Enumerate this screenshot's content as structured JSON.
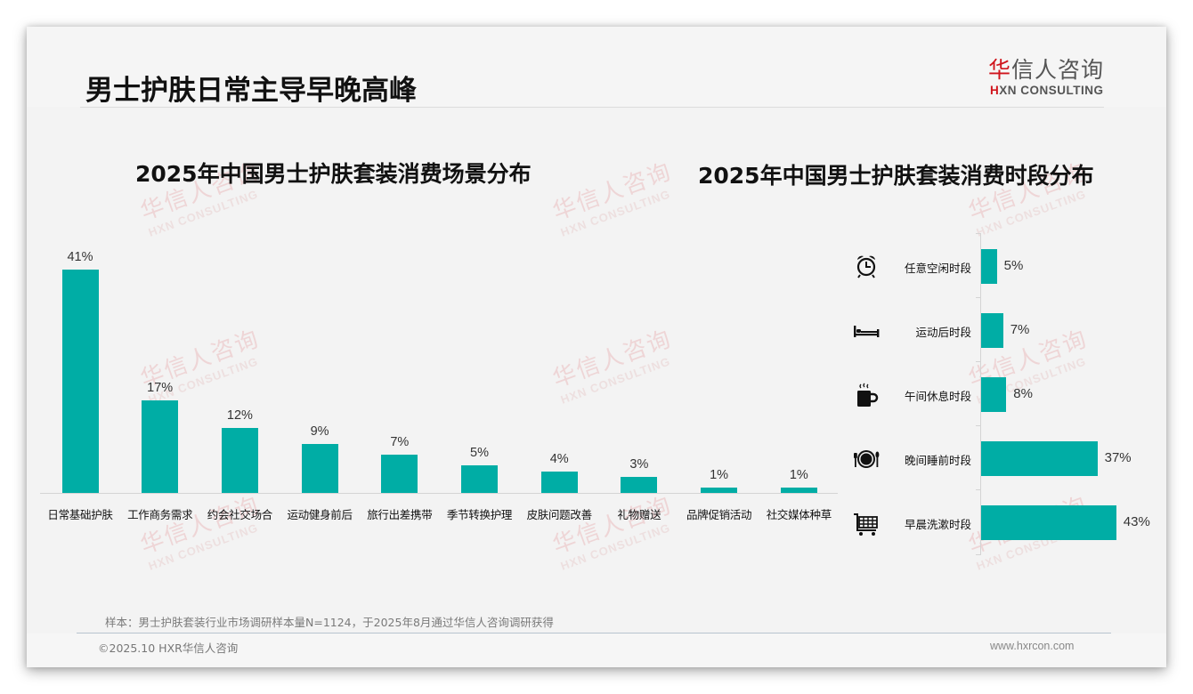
{
  "page": {
    "title": "男士护肤日常主导早晚高峰",
    "logo": {
      "cn_red": "华",
      "cn_rest": "信人咨询",
      "en_red": "H",
      "en_rest": "XN CONSULTING"
    },
    "watermark": {
      "cn": "华信人咨询",
      "en": "HXN CONSULTING"
    },
    "note": "样本：男士护肤套装行业市场调研样本量N=1124，于2025年8月通过华信人咨询调研获得",
    "copyright": "©2025.10 HXR华信人咨询",
    "website": "www.hxrcon.com",
    "colors": {
      "bar": "#00ada5",
      "brand_red": "#d0141c",
      "background": "#f3f3f3"
    }
  },
  "chart_data": [
    {
      "type": "bar",
      "orientation": "vertical",
      "title": "2025年中国男士护肤套装消费场景分布",
      "categories": [
        "日常基础护肤",
        "工作商务需求",
        "约会社交场合",
        "运动健身前后",
        "旅行出差携带",
        "季节转换护理",
        "皮肤问题改善",
        "礼物赠送",
        "品牌促销活动",
        "社交媒体种草"
      ],
      "values": [
        41,
        17,
        12,
        9,
        7,
        5,
        4,
        3,
        1,
        1
      ],
      "labels": [
        "41%",
        "17%",
        "12%",
        "9%",
        "7%",
        "5%",
        "4%",
        "3%",
        "1%",
        "1%"
      ],
      "unit": "%",
      "xlabel": "",
      "ylabel": "",
      "grid": false,
      "legend": "none",
      "color": "#00ada5"
    },
    {
      "type": "bar",
      "orientation": "horizontal",
      "title": "2025年中国男士护肤套装消费时段分布",
      "categories": [
        "任意空闲时段",
        "运动后时段",
        "午间休息时段",
        "晚间睡前时段",
        "早晨洗漱时段"
      ],
      "values": [
        5,
        7,
        8,
        37,
        43
      ],
      "labels": [
        "5%",
        "7%",
        "8%",
        "37%",
        "43%"
      ],
      "icons": [
        "alarm-clock-icon",
        "bed-icon",
        "coffee-mug-icon",
        "dinner-plate-icon",
        "shopping-cart-icon"
      ],
      "unit": "%",
      "xlabel": "",
      "ylabel": "",
      "grid": false,
      "legend": "none",
      "color": "#00ada5"
    }
  ]
}
